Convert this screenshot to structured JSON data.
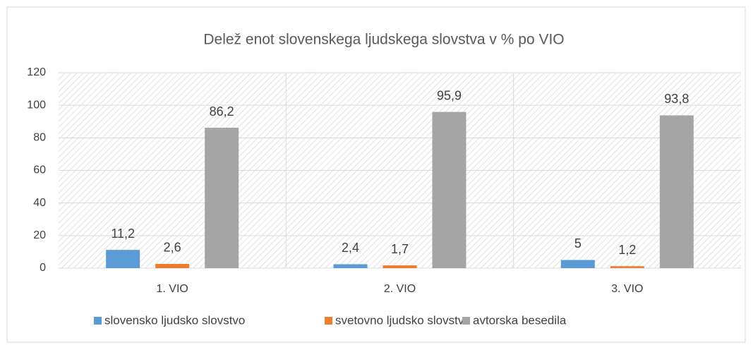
{
  "chart_data": {
    "type": "bar",
    "title": "Delež enot slovenskega ljudskega slovstva v % po VIO",
    "categories": [
      "1. VIO",
      "2. VIO",
      "3. VIO"
    ],
    "series": [
      {
        "name": "slovensko ljudsko slovstvo",
        "color": "#5b9bd5",
        "values": [
          11.2,
          2.4,
          5
        ],
        "value_labels": [
          "11,2",
          "2,4",
          "5"
        ]
      },
      {
        "name": "svetovno ljudsko slovstvo",
        "color": "#ed7d31",
        "values": [
          2.6,
          1.7,
          1.2
        ],
        "value_labels": [
          "2,6",
          "1,7",
          "1,2"
        ]
      },
      {
        "name": "avtorska besedila",
        "color": "#a5a5a5",
        "values": [
          86.2,
          95.9,
          93.8
        ],
        "value_labels": [
          "86,2",
          "95,9",
          "93,8"
        ]
      }
    ],
    "ylim": [
      0,
      120
    ],
    "yticks": [
      0,
      20,
      40,
      60,
      80,
      100,
      120
    ],
    "grid": true,
    "legend": "bottom"
  }
}
